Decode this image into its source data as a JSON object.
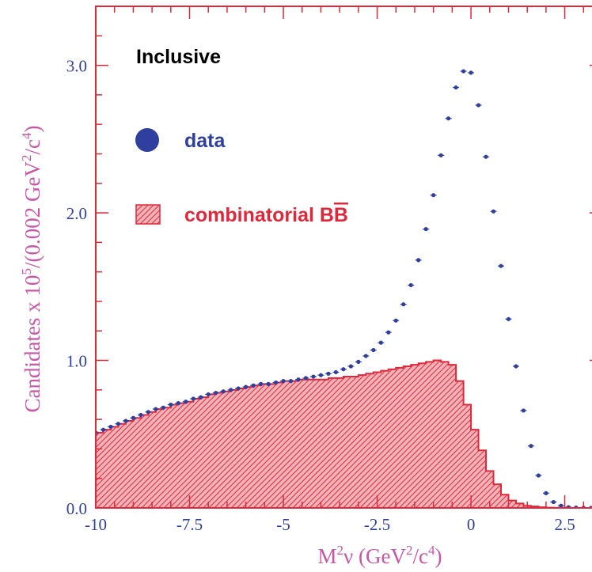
{
  "chart_data": {
    "type": "histogram-with-points",
    "xlabel": "M²ν (GeV²/c⁴)",
    "ylabel": "Candidates x 10⁵/(0.002 GeV²/c⁴)",
    "xlim": [
      -10,
      3.5
    ],
    "ylim": [
      0,
      3.4
    ],
    "x_ticks": [
      "-10",
      "-7.5",
      "-5",
      "-2.5",
      "0",
      "2.5"
    ],
    "x_tick_values": [
      -10,
      -7.5,
      -5,
      -2.5,
      0,
      2.5
    ],
    "y_ticks": [
      "0.0",
      "1.0",
      "2.0",
      "3.0"
    ],
    "y_tick_values": [
      0,
      1,
      2,
      3
    ],
    "colors": {
      "frame": "#e0283a",
      "data": "#2f3f9e",
      "histogram": "#e0283a",
      "axis_title": "#c857a8"
    },
    "legend": {
      "title": "Inclusive",
      "data_label": "data",
      "bb_label": "combinatorial B",
      "bb_label_bar": "B"
    },
    "series": [
      {
        "name": "data",
        "kind": "points",
        "x": [
          -10,
          -9.8,
          -9.6,
          -9.4,
          -9.2,
          -9,
          -8.8,
          -8.6,
          -8.4,
          -8.2,
          -8,
          -7.8,
          -7.6,
          -7.4,
          -7.2,
          -7,
          -6.8,
          -6.6,
          -6.4,
          -6.2,
          -6,
          -5.8,
          -5.6,
          -5.4,
          -5.2,
          -5,
          -4.8,
          -4.6,
          -4.4,
          -4.2,
          -4,
          -3.8,
          -3.6,
          -3.4,
          -3.2,
          -3,
          -2.8,
          -2.6,
          -2.4,
          -2.2,
          -2,
          -1.8,
          -1.6,
          -1.4,
          -1.2,
          -1,
          -0.8,
          -0.6,
          -0.4,
          -0.2,
          0,
          0.2,
          0.4,
          0.6,
          0.8,
          1,
          1.2,
          1.4,
          1.6,
          1.8,
          2,
          2.2,
          2.4,
          2.6,
          2.8,
          3,
          3.2
        ],
        "y": [
          0.51,
          0.53,
          0.55,
          0.57,
          0.59,
          0.61,
          0.63,
          0.65,
          0.67,
          0.68,
          0.7,
          0.71,
          0.72,
          0.74,
          0.75,
          0.77,
          0.78,
          0.79,
          0.8,
          0.81,
          0.82,
          0.83,
          0.84,
          0.84,
          0.85,
          0.86,
          0.86,
          0.87,
          0.88,
          0.89,
          0.9,
          0.91,
          0.92,
          0.94,
          0.96,
          0.99,
          1.03,
          1.07,
          1.12,
          1.19,
          1.27,
          1.38,
          1.51,
          1.68,
          1.89,
          2.12,
          2.39,
          2.64,
          2.85,
          2.96,
          2.95,
          2.73,
          2.38,
          2.01,
          1.64,
          1.28,
          0.96,
          0.66,
          0.42,
          0.22,
          0.1,
          0.04,
          0.015,
          0.005,
          0.002,
          0.001,
          0.0
        ]
      },
      {
        "name": "combinatorial BB",
        "kind": "histogram",
        "bin_width": 0.2,
        "bin_starts": [
          -10,
          -9.8,
          -9.6,
          -9.4,
          -9.2,
          -9,
          -8.8,
          -8.6,
          -8.4,
          -8.2,
          -8,
          -7.8,
          -7.6,
          -7.4,
          -7.2,
          -7,
          -6.8,
          -6.6,
          -6.4,
          -6.2,
          -6,
          -5.8,
          -5.6,
          -5.4,
          -5.2,
          -5,
          -4.8,
          -4.6,
          -4.4,
          -4.2,
          -4,
          -3.8,
          -3.6,
          -3.4,
          -3.2,
          -3,
          -2.8,
          -2.6,
          -2.4,
          -2.2,
          -2,
          -1.8,
          -1.6,
          -1.4,
          -1.2,
          -1,
          -0.8,
          -0.6,
          -0.4,
          -0.2,
          0,
          0.2,
          0.4,
          0.6,
          0.8,
          1,
          1.2,
          1.4,
          1.6,
          1.8,
          2,
          2.2,
          2.4,
          2.6,
          2.8,
          3,
          3.2
        ],
        "values": [
          0.51,
          0.53,
          0.55,
          0.57,
          0.59,
          0.61,
          0.63,
          0.65,
          0.67,
          0.68,
          0.7,
          0.71,
          0.72,
          0.74,
          0.75,
          0.77,
          0.78,
          0.79,
          0.8,
          0.81,
          0.82,
          0.83,
          0.84,
          0.84,
          0.85,
          0.86,
          0.86,
          0.87,
          0.87,
          0.87,
          0.87,
          0.88,
          0.88,
          0.89,
          0.89,
          0.9,
          0.91,
          0.92,
          0.93,
          0.94,
          0.95,
          0.96,
          0.97,
          0.98,
          0.99,
          1.0,
          0.99,
          0.97,
          0.86,
          0.7,
          0.53,
          0.39,
          0.25,
          0.16,
          0.09,
          0.05,
          0.03,
          0.015,
          0.01,
          0.005,
          0.002,
          0.001,
          0.0,
          0.0,
          0.0,
          0.0,
          0.0
        ]
      }
    ]
  }
}
